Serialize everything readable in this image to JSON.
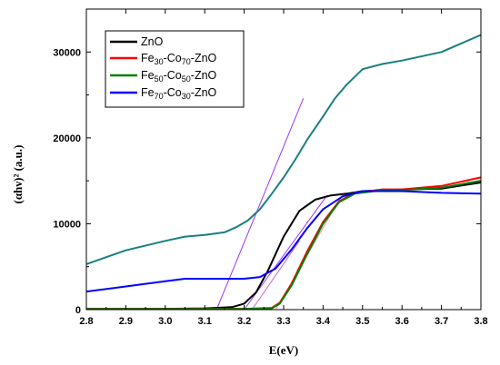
{
  "chart_data": {
    "type": "line",
    "xlabel": "E(eV)",
    "ylabel": "(αhν)² (a.u.)",
    "xlim": [
      2.8,
      3.8
    ],
    "ylim": [
      0,
      35000
    ],
    "xticks": [
      2.8,
      2.9,
      3.0,
      3.1,
      3.2,
      3.3,
      3.4,
      3.5,
      3.6,
      3.7,
      3.8
    ],
    "yticks": [
      0,
      10000,
      20000,
      30000
    ],
    "grid": false,
    "legend_position": "top-left",
    "legend": [
      {
        "label": "ZnO",
        "color": "#000000"
      },
      {
        "label": "Fe30-Co70-ZnO",
        "base": "Fe",
        "sub1": "30",
        "mid": "-Co",
        "sub2": "70",
        "tail": "-ZnO",
        "color": "#ff0000"
      },
      {
        "label": "Fe50-Co50-ZnO",
        "base": "Fe",
        "sub1": "50",
        "mid": "-Co",
        "sub2": "50",
        "tail": "-ZnO",
        "color": "#008000"
      },
      {
        "label": "Fe70-Co30-ZnO",
        "base": "Fe",
        "sub1": "70",
        "mid": "-Co",
        "sub2": "30",
        "tail": "-ZnO",
        "color": "#0000ff"
      }
    ],
    "series": [
      {
        "name": "ZnO",
        "color": "#000000",
        "x": [
          2.8,
          3.0,
          3.1,
          3.17,
          3.2,
          3.23,
          3.26,
          3.3,
          3.34,
          3.38,
          3.42,
          3.46,
          3.5,
          3.6,
          3.7,
          3.8
        ],
        "y": [
          100,
          100,
          150,
          300,
          700,
          2000,
          4500,
          8500,
          11500,
          12800,
          13300,
          13500,
          13800,
          14000,
          14100,
          14800
        ]
      },
      {
        "name": "Fe30-Co70-ZnO",
        "color": "#ff0000",
        "x": [
          2.8,
          3.0,
          3.2,
          3.27,
          3.29,
          3.32,
          3.36,
          3.4,
          3.44,
          3.48,
          3.55,
          3.6,
          3.7,
          3.8
        ],
        "y": [
          80,
          80,
          100,
          200,
          800,
          3000,
          6800,
          10200,
          12600,
          13600,
          14000,
          14000,
          14400,
          15400
        ]
      },
      {
        "name": "Fe50-Co50-ZnO",
        "color": "#008000",
        "x": [
          2.8,
          3.0,
          3.2,
          3.27,
          3.29,
          3.32,
          3.36,
          3.4,
          3.44,
          3.48,
          3.55,
          3.6,
          3.7,
          3.8
        ],
        "y": [
          60,
          60,
          80,
          150,
          700,
          2800,
          6500,
          10000,
          12500,
          13500,
          13900,
          13900,
          14200,
          15000
        ]
      },
      {
        "name": "Fe70-Co30-ZnO",
        "color": "#0000ff",
        "x": [
          2.8,
          2.9,
          3.0,
          3.05,
          3.1,
          3.2,
          3.24,
          3.28,
          3.32,
          3.36,
          3.4,
          3.45,
          3.5,
          3.6,
          3.7,
          3.8
        ],
        "y": [
          2100,
          2700,
          3300,
          3600,
          3600,
          3600,
          3800,
          4800,
          7000,
          9500,
          11700,
          13200,
          13800,
          13800,
          13600,
          13500
        ]
      },
      {
        "name": "",
        "color": "#1a7e80",
        "x": [
          2.8,
          2.9,
          3.0,
          3.05,
          3.1,
          3.15,
          3.18,
          3.21,
          3.24,
          3.27,
          3.3,
          3.33,
          3.36,
          3.4,
          3.43,
          3.46,
          3.5,
          3.55,
          3.6,
          3.7,
          3.8
        ],
        "y": [
          5300,
          6900,
          8000,
          8500,
          8700,
          9000,
          9600,
          10400,
          11700,
          13500,
          15400,
          17500,
          19800,
          22500,
          24600,
          26200,
          28000,
          28600,
          29000,
          30000,
          32000
        ]
      }
    ],
    "fit_lines": [
      {
        "color": "#9933ff",
        "x": [
          3.13,
          3.35
        ],
        "y": [
          0,
          24600
        ]
      },
      {
        "color": "#9933ff",
        "x": [
          3.2,
          3.41
        ],
        "y": [
          0,
          13300
        ]
      },
      {
        "color": "#cc66cc",
        "x": [
          3.22,
          3.34
        ],
        "y": [
          0,
          8000
        ]
      },
      {
        "color": "#ff88aa",
        "x": [
          3.28,
          3.45
        ],
        "y": [
          0,
          13500
        ]
      }
    ]
  }
}
